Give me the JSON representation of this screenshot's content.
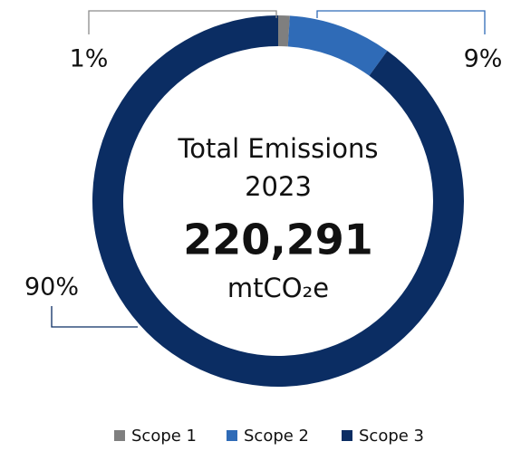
{
  "chart_data": {
    "type": "donut",
    "categories": [
      "Scope 1",
      "Scope 2",
      "Scope 3"
    ],
    "values": [
      1,
      9,
      90
    ],
    "value_labels": [
      "1%",
      "9%",
      "90%"
    ],
    "colors": [
      "#7f7f7f",
      "#2f6bb7",
      "#0b2d63"
    ],
    "leader_colors": [
      "#8c8c8c",
      "#2f6bb7",
      "#0b2d63"
    ],
    "center_title": [
      "Total Emissions",
      "2023"
    ],
    "total": {
      "value": 220291,
      "label": "220,291"
    },
    "unit": "mtCO₂e",
    "legend": "bottom"
  }
}
